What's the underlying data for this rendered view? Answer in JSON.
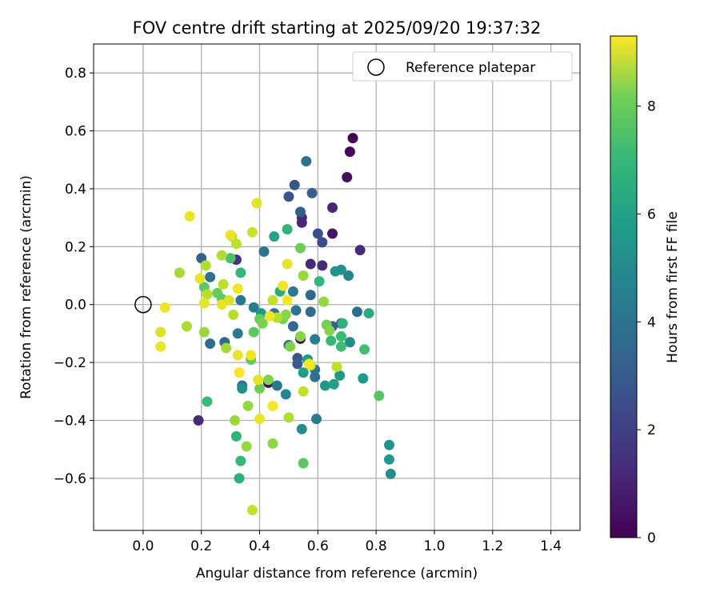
{
  "chart_data": {
    "type": "scatter",
    "title": "FOV centre drift starting at 2025/09/20 19:37:32",
    "xlabel": "Angular distance from reference (arcmin)",
    "ylabel": "Rotation from reference (arcmin)",
    "xlim": [
      -0.17,
      1.5
    ],
    "ylim": [
      -0.78,
      0.9
    ],
    "grid": true,
    "x_ticks": [
      0.0,
      0.2,
      0.4,
      0.6,
      0.8,
      1.0,
      1.2,
      1.4
    ],
    "x_tick_labels": [
      "0.0",
      "0.2",
      "0.4",
      "0.6",
      "0.8",
      "1.0",
      "1.2",
      "1.4"
    ],
    "y_ticks": [
      -0.6,
      -0.4,
      -0.2,
      0.0,
      0.2,
      0.4,
      0.6,
      0.8
    ],
    "y_tick_labels": [
      "−0.6",
      "−0.4",
      "−0.2",
      "0.0",
      "0.2",
      "0.4",
      "0.6",
      "0.8"
    ],
    "legend": {
      "position": "top-right",
      "entries": [
        "Reference platepar"
      ]
    },
    "reference_point": {
      "x": 0.0,
      "y": 0.0
    },
    "colorbar": {
      "label": "Hours from first FF file",
      "min": 0,
      "max": 9.3,
      "ticks": [
        0,
        2,
        4,
        6,
        8
      ],
      "tick_labels": [
        "0",
        "2",
        "4",
        "6",
        "8"
      ],
      "colormap": "viridis"
    },
    "points": [
      {
        "x": 0.72,
        "y": 0.575,
        "t": 0.1
      },
      {
        "x": 0.71,
        "y": 0.528,
        "t": 0.2
      },
      {
        "x": 0.7,
        "y": 0.44,
        "t": 0.4
      },
      {
        "x": 0.65,
        "y": 0.335,
        "t": 1.0
      },
      {
        "x": 0.65,
        "y": 0.245,
        "t": 0.5
      },
      {
        "x": 0.745,
        "y": 0.188,
        "t": 1.1
      },
      {
        "x": 0.545,
        "y": 0.3,
        "t": 1.2
      },
      {
        "x": 0.545,
        "y": 0.283,
        "t": 1.0
      },
      {
        "x": 0.575,
        "y": 0.14,
        "t": 1.0
      },
      {
        "x": 0.615,
        "y": 0.135,
        "t": 1.1
      },
      {
        "x": 0.32,
        "y": 0.155,
        "t": 1.3
      },
      {
        "x": 0.19,
        "y": -0.4,
        "t": 1.1
      },
      {
        "x": 0.54,
        "y": -0.118,
        "t": 0.3
      },
      {
        "x": 0.43,
        "y": -0.27,
        "t": 0.2
      },
      {
        "x": 0.56,
        "y": 0.495,
        "t": 3.4
      },
      {
        "x": 0.52,
        "y": 0.413,
        "t": 2.5
      },
      {
        "x": 0.58,
        "y": 0.385,
        "t": 2.9
      },
      {
        "x": 0.5,
        "y": 0.373,
        "t": 2.4
      },
      {
        "x": 0.54,
        "y": 0.32,
        "t": 2.8
      },
      {
        "x": 0.6,
        "y": 0.245,
        "t": 2.3
      },
      {
        "x": 0.615,
        "y": 0.215,
        "t": 2.1
      },
      {
        "x": 0.2,
        "y": 0.16,
        "t": 2.9
      },
      {
        "x": 0.415,
        "y": 0.183,
        "t": 3.6
      },
      {
        "x": 0.23,
        "y": 0.095,
        "t": 3.5
      },
      {
        "x": 0.705,
        "y": 0.1,
        "t": 4.3
      },
      {
        "x": 0.515,
        "y": 0.045,
        "t": 3.9
      },
      {
        "x": 0.575,
        "y": 0.033,
        "t": 3.1
      },
      {
        "x": 0.335,
        "y": 0.015,
        "t": 3.6
      },
      {
        "x": 0.38,
        "y": -0.01,
        "t": 3.9
      },
      {
        "x": 0.735,
        "y": -0.025,
        "t": 3.3
      },
      {
        "x": 0.525,
        "y": -0.02,
        "t": 3.6
      },
      {
        "x": 0.575,
        "y": -0.025,
        "t": 3.3
      },
      {
        "x": 0.45,
        "y": -0.03,
        "t": 3.4
      },
      {
        "x": 0.515,
        "y": -0.075,
        "t": 3.2
      },
      {
        "x": 0.65,
        "y": -0.075,
        "t": 3.0
      },
      {
        "x": 0.68,
        "y": -0.065,
        "t": 2.8
      },
      {
        "x": 0.325,
        "y": -0.1,
        "t": 3.9
      },
      {
        "x": 0.59,
        "y": -0.12,
        "t": 3.9
      },
      {
        "x": 0.23,
        "y": -0.135,
        "t": 3.3
      },
      {
        "x": 0.28,
        "y": -0.13,
        "t": 3.2
      },
      {
        "x": 0.5,
        "y": -0.14,
        "t": 3.1
      },
      {
        "x": 0.53,
        "y": -0.185,
        "t": 2.4
      },
      {
        "x": 0.53,
        "y": -0.205,
        "t": 2.6
      },
      {
        "x": 0.59,
        "y": -0.225,
        "t": 3.6
      },
      {
        "x": 0.59,
        "y": -0.25,
        "t": 3.4
      },
      {
        "x": 0.34,
        "y": -0.28,
        "t": 3.5
      },
      {
        "x": 0.46,
        "y": -0.28,
        "t": 3.8
      },
      {
        "x": 0.49,
        "y": -0.31,
        "t": 4.2
      },
      {
        "x": 0.595,
        "y": -0.395,
        "t": 3.8
      },
      {
        "x": 0.71,
        "y": -0.13,
        "t": 4.5
      },
      {
        "x": 0.68,
        "y": 0.12,
        "t": 4.7
      },
      {
        "x": 0.66,
        "y": 0.115,
        "t": 4.8
      },
      {
        "x": 0.405,
        "y": -0.03,
        "t": 5.0
      },
      {
        "x": 0.34,
        "y": -0.29,
        "t": 4.6
      },
      {
        "x": 0.545,
        "y": -0.43,
        "t": 4.5
      },
      {
        "x": 0.85,
        "y": -0.585,
        "t": 4.6
      },
      {
        "x": 0.845,
        "y": -0.485,
        "t": 4.8
      },
      {
        "x": 0.845,
        "y": -0.535,
        "t": 5.0
      },
      {
        "x": 0.755,
        "y": -0.255,
        "t": 5.1
      },
      {
        "x": 0.625,
        "y": -0.28,
        "t": 5.0
      },
      {
        "x": 0.655,
        "y": -0.275,
        "t": 5.2
      },
      {
        "x": 0.675,
        "y": -0.245,
        "t": 5.0
      },
      {
        "x": 0.55,
        "y": -0.235,
        "t": 5.2
      },
      {
        "x": 0.565,
        "y": -0.19,
        "t": 5.0
      },
      {
        "x": 0.45,
        "y": 0.235,
        "t": 5.4
      },
      {
        "x": 0.495,
        "y": 0.26,
        "t": 6.0
      },
      {
        "x": 0.47,
        "y": 0.045,
        "t": 5.8
      },
      {
        "x": 0.335,
        "y": 0.11,
        "t": 6.2
      },
      {
        "x": 0.605,
        "y": 0.08,
        "t": 6.1
      },
      {
        "x": 0.685,
        "y": -0.065,
        "t": 6.0
      },
      {
        "x": 0.68,
        "y": -0.11,
        "t": 6.3
      },
      {
        "x": 0.68,
        "y": -0.145,
        "t": 6.4
      },
      {
        "x": 0.645,
        "y": -0.125,
        "t": 6.2
      },
      {
        "x": 0.76,
        "y": -0.155,
        "t": 6.5
      },
      {
        "x": 0.775,
        "y": -0.03,
        "t": 5.7
      },
      {
        "x": 0.22,
        "y": -0.335,
        "t": 6.3
      },
      {
        "x": 0.32,
        "y": -0.455,
        "t": 6.0
      },
      {
        "x": 0.335,
        "y": -0.54,
        "t": 6.2
      },
      {
        "x": 0.33,
        "y": -0.6,
        "t": 5.9
      },
      {
        "x": 0.81,
        "y": -0.315,
        "t": 6.8
      },
      {
        "x": 0.55,
        "y": -0.548,
        "t": 6.9
      },
      {
        "x": 0.3,
        "y": 0.16,
        "t": 6.6
      },
      {
        "x": 0.21,
        "y": 0.06,
        "t": 6.9
      },
      {
        "x": 0.255,
        "y": 0.04,
        "t": 7.1
      },
      {
        "x": 0.27,
        "y": 0.02,
        "t": 6.9
      },
      {
        "x": 0.38,
        "y": -0.095,
        "t": 6.9
      },
      {
        "x": 0.4,
        "y": -0.05,
        "t": 7.1
      },
      {
        "x": 0.37,
        "y": -0.19,
        "t": 7.0
      },
      {
        "x": 0.4,
        "y": -0.29,
        "t": 7.2
      },
      {
        "x": 0.41,
        "y": -0.065,
        "t": 7.4
      },
      {
        "x": 0.43,
        "y": -0.26,
        "t": 7.5
      },
      {
        "x": 0.48,
        "y": -0.05,
        "t": 7.3
      },
      {
        "x": 0.49,
        "y": -0.035,
        "t": 7.6
      },
      {
        "x": 0.505,
        "y": -0.145,
        "t": 7.5
      },
      {
        "x": 0.54,
        "y": 0.195,
        "t": 7.2
      },
      {
        "x": 0.63,
        "y": -0.07,
        "t": 7.3
      },
      {
        "x": 0.64,
        "y": -0.09,
        "t": 7.6
      },
      {
        "x": 0.62,
        "y": 0.01,
        "t": 7.8
      },
      {
        "x": 0.55,
        "y": 0.1,
        "t": 7.9
      },
      {
        "x": 0.54,
        "y": -0.11,
        "t": 7.6
      },
      {
        "x": 0.36,
        "y": -0.35,
        "t": 7.8
      },
      {
        "x": 0.445,
        "y": -0.48,
        "t": 7.7
      },
      {
        "x": 0.315,
        "y": -0.4,
        "t": 7.9
      },
      {
        "x": 0.355,
        "y": -0.49,
        "t": 7.8
      },
      {
        "x": 0.285,
        "y": -0.15,
        "t": 8.0
      },
      {
        "x": 0.125,
        "y": 0.11,
        "t": 8.0
      },
      {
        "x": 0.15,
        "y": -0.075,
        "t": 8.1
      },
      {
        "x": 0.21,
        "y": -0.095,
        "t": 7.9
      },
      {
        "x": 0.215,
        "y": 0.135,
        "t": 8.2
      },
      {
        "x": 0.22,
        "y": 0.035,
        "t": 8.3
      },
      {
        "x": 0.27,
        "y": 0.17,
        "t": 8.2
      },
      {
        "x": 0.275,
        "y": 0.07,
        "t": 8.4
      },
      {
        "x": 0.305,
        "y": 0.235,
        "t": 8.3
      },
      {
        "x": 0.31,
        "y": -0.035,
        "t": 8.3
      },
      {
        "x": 0.32,
        "y": 0.21,
        "t": 8.4
      },
      {
        "x": 0.375,
        "y": 0.25,
        "t": 8.6
      },
      {
        "x": 0.39,
        "y": 0.35,
        "t": 8.9
      },
      {
        "x": 0.445,
        "y": 0.015,
        "t": 8.5
      },
      {
        "x": 0.46,
        "y": -0.045,
        "t": 8.3
      },
      {
        "x": 0.5,
        "y": -0.39,
        "t": 8.2
      },
      {
        "x": 0.55,
        "y": -0.3,
        "t": 8.5
      },
      {
        "x": 0.575,
        "y": -0.21,
        "t": 8.6
      },
      {
        "x": 0.665,
        "y": -0.215,
        "t": 8.4
      },
      {
        "x": 0.375,
        "y": -0.71,
        "t": 8.5
      },
      {
        "x": 0.06,
        "y": -0.095,
        "t": 8.8
      },
      {
        "x": 0.06,
        "y": -0.145,
        "t": 9.0
      },
      {
        "x": 0.075,
        "y": -0.01,
        "t": 9.1
      },
      {
        "x": 0.16,
        "y": 0.305,
        "t": 9.0
      },
      {
        "x": 0.195,
        "y": 0.09,
        "t": 9.0
      },
      {
        "x": 0.21,
        "y": 0.005,
        "t": 8.9
      },
      {
        "x": 0.27,
        "y": 0.0,
        "t": 9.0
      },
      {
        "x": 0.295,
        "y": 0.015,
        "t": 8.8
      },
      {
        "x": 0.3,
        "y": 0.24,
        "t": 9.0
      },
      {
        "x": 0.325,
        "y": 0.055,
        "t": 9.1
      },
      {
        "x": 0.325,
        "y": -0.175,
        "t": 9.0
      },
      {
        "x": 0.33,
        "y": -0.235,
        "t": 9.2
      },
      {
        "x": 0.37,
        "y": -0.175,
        "t": 9.1
      },
      {
        "x": 0.395,
        "y": -0.26,
        "t": 8.9
      },
      {
        "x": 0.4,
        "y": -0.395,
        "t": 9.0
      },
      {
        "x": 0.435,
        "y": -0.04,
        "t": 9.1
      },
      {
        "x": 0.445,
        "y": -0.35,
        "t": 9.2
      },
      {
        "x": 0.48,
        "y": 0.065,
        "t": 9.1
      },
      {
        "x": 0.495,
        "y": 0.14,
        "t": 9.0
      },
      {
        "x": 0.495,
        "y": 0.015,
        "t": 9.2
      },
      {
        "x": 0.57,
        "y": -0.205,
        "t": 9.2
      }
    ]
  }
}
